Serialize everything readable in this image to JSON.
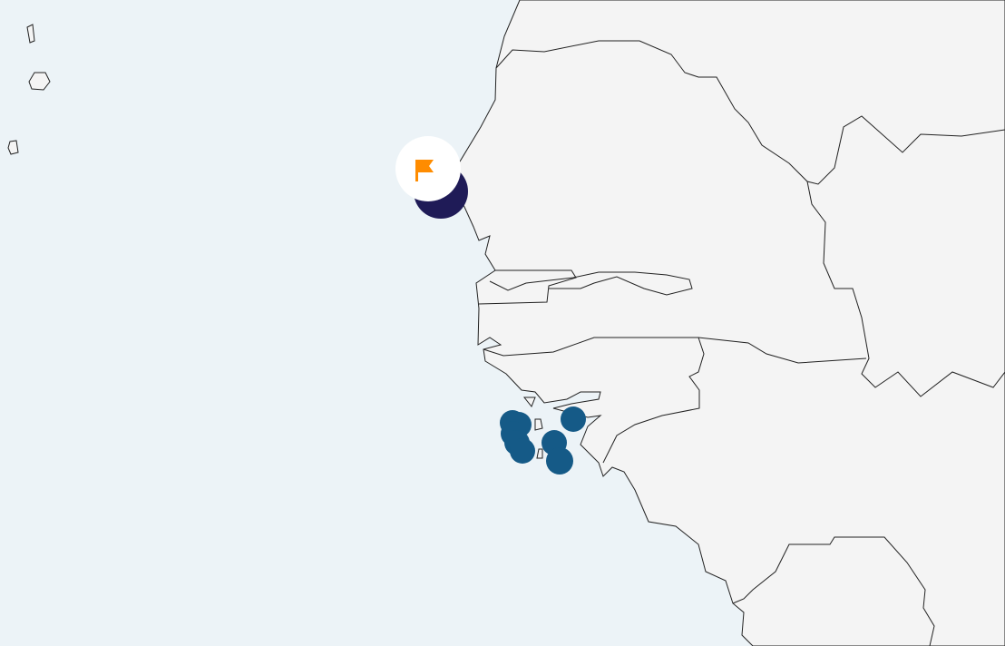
{
  "map": {
    "colors": {
      "sea": "#ecf3f7",
      "land": "#f4f4f4",
      "border": "#222222",
      "highlight_marker": "#1f1b57",
      "cluster_marker": "#155a87",
      "flag": "#ff8c00",
      "flag_badge": "#ffffff"
    },
    "markers": {
      "highlight": {
        "icon": "flag-icon",
        "count": 1
      },
      "cluster": {
        "count": 8
      }
    }
  }
}
